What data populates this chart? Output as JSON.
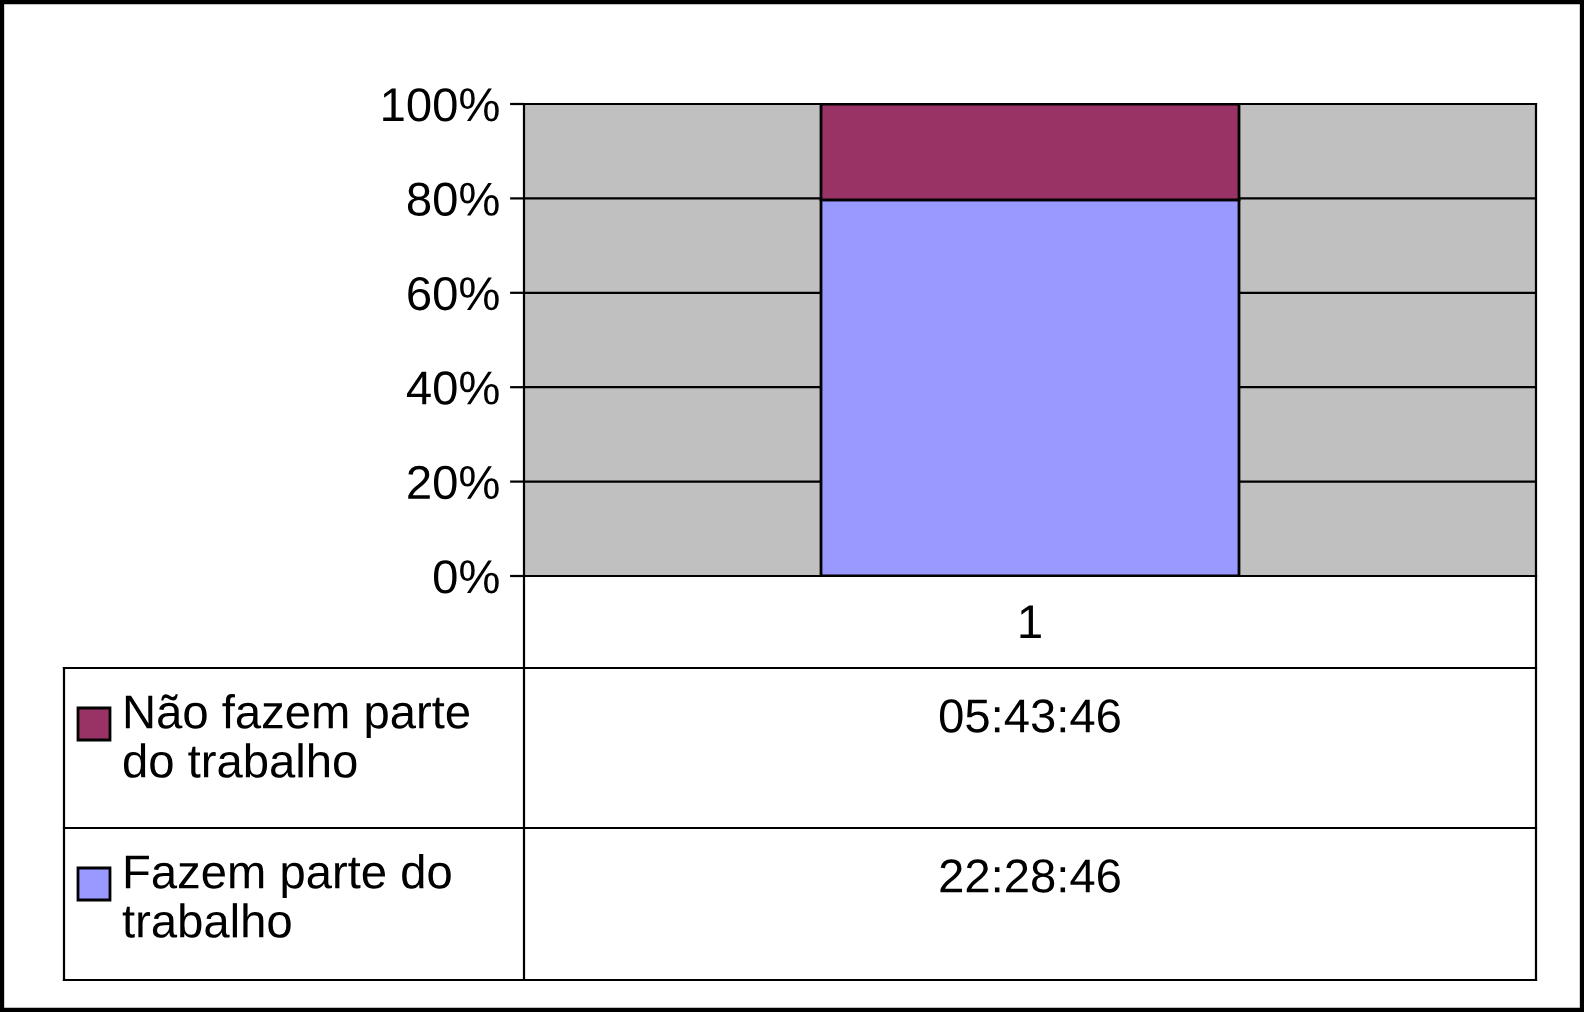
{
  "chart_data": {
    "type": "bar",
    "stacked": true,
    "categories": [
      "1"
    ],
    "series": [
      {
        "name": "Fazem parte do trabalho",
        "color": "#9999ff",
        "values": [
          79.7
        ]
      },
      {
        "name": "Não fazem parte do trabalho",
        "color": "#993366",
        "values": [
          20.3
        ]
      }
    ],
    "annotations": [
      "05:43:46",
      "22:28:46"
    ],
    "ylim": [
      0,
      100
    ],
    "yticks": [
      {
        "value": 0,
        "label": "0%"
      },
      {
        "value": 20,
        "label": "20%"
      },
      {
        "value": 40,
        "label": "40%"
      },
      {
        "value": 60,
        "label": "60%"
      },
      {
        "value": 80,
        "label": "80%"
      },
      {
        "value": 100,
        "label": "100%"
      }
    ],
    "grid": "y",
    "legend": "left"
  }
}
